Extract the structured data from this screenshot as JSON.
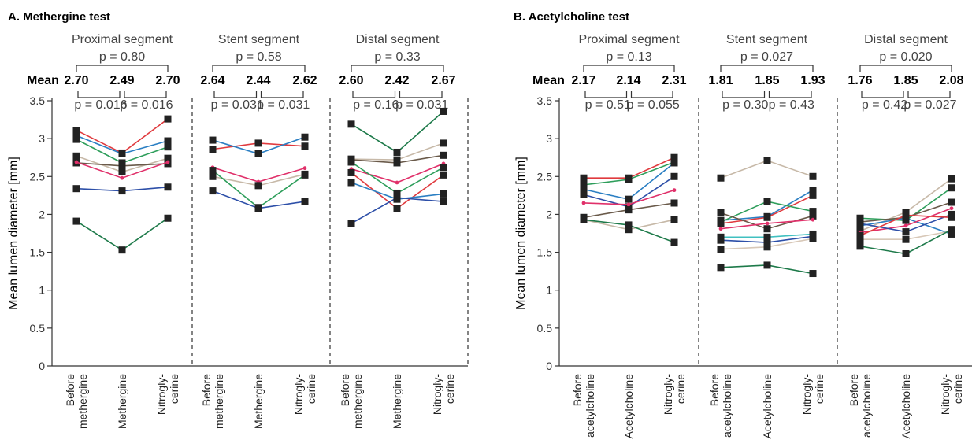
{
  "chart_data": [
    {
      "type": "line",
      "title": "A. Methergine test",
      "ylabel": "Mean lumen diameter [mm]",
      "ylim": [
        0,
        3.5
      ],
      "yticks": [
        "0",
        "0.5",
        "1",
        "1.5",
        "2",
        "2.5",
        "3",
        "3.5"
      ],
      "mean_label": "Mean",
      "segments": [
        {
          "name": "Proximal segment",
          "p_overall": "p = 0.80",
          "means": [
            "2.70",
            "2.49",
            "2.70"
          ],
          "p_pairs": [
            "p = 0.016",
            "p = 0.016"
          ],
          "categories": [
            [
              "Before",
              "methergine"
            ],
            [
              "Methergine"
            ],
            [
              "Nitrogly-",
              "cerine"
            ]
          ],
          "series": [
            {
              "color": "#e03a3e",
              "marker": "square",
              "values": [
                3.11,
                2.81,
                3.26
              ]
            },
            {
              "color": "#2b7fc3",
              "marker": "square",
              "values": [
                3.04,
                2.8,
                2.97
              ]
            },
            {
              "color": "#2e9e5b",
              "marker": "square",
              "values": [
                2.99,
                2.68,
                2.89
              ]
            },
            {
              "color": "#c7b9a8",
              "marker": "square",
              "values": [
                2.77,
                2.56,
                2.74
              ]
            },
            {
              "color": "#6a5a4a",
              "marker": "square",
              "values": [
                2.68,
                2.64,
                2.67
              ]
            },
            {
              "color": "#e0306a",
              "marker": "dot",
              "values": [
                2.69,
                2.48,
                2.69
              ]
            },
            {
              "color": "#2d4fa8",
              "marker": "square",
              "values": [
                2.34,
                2.31,
                2.36
              ]
            },
            {
              "color": "#1e7a4a",
              "marker": "square",
              "values": [
                1.91,
                1.53,
                1.95
              ]
            }
          ]
        },
        {
          "name": "Stent segment",
          "p_overall": "p = 0.58",
          "means": [
            "2.64",
            "2.44",
            "2.62"
          ],
          "p_pairs": [
            "p = 0.031",
            "p = 0.031"
          ],
          "categories": [
            [
              "Before",
              "methergine"
            ],
            [
              "Methergine"
            ],
            [
              "Nitrogly-",
              "cerine"
            ]
          ],
          "series": [
            {
              "color": "#e03a3e",
              "marker": "square",
              "values": [
                2.86,
                2.94,
                2.9
              ]
            },
            {
              "color": "#2b7fc3",
              "marker": "square",
              "values": [
                2.98,
                2.8,
                3.02
              ]
            },
            {
              "color": "#e0306a",
              "marker": "dot",
              "values": [
                2.62,
                2.43,
                2.61
              ]
            },
            {
              "color": "#c7b9a8",
              "marker": "square",
              "values": [
                2.5,
                2.38,
                2.53
              ]
            },
            {
              "color": "#2e9e5b",
              "marker": "square",
              "values": [
                2.58,
                2.09,
                2.52
              ]
            },
            {
              "color": "#2d4fa8",
              "marker": "square",
              "values": [
                2.31,
                2.08,
                2.17
              ]
            }
          ]
        },
        {
          "name": "Distal segment",
          "p_overall": "p = 0.33",
          "means": [
            "2.60",
            "2.42",
            "2.67"
          ],
          "p_pairs": [
            "p = 0.16",
            "p = 0.031"
          ],
          "categories": [
            [
              "Before",
              "methergine"
            ],
            [
              "Methergine"
            ],
            [
              "Nitrogly-",
              "cerine"
            ]
          ],
          "series": [
            {
              "color": "#1e7a4a",
              "marker": "square",
              "values": [
                3.19,
                2.82,
                3.36
              ]
            },
            {
              "color": "#c7b9a8",
              "marker": "square",
              "values": [
                2.73,
                2.72,
                2.94
              ]
            },
            {
              "color": "#6a5a4a",
              "marker": "square",
              "values": [
                2.72,
                2.68,
                2.78
              ]
            },
            {
              "color": "#e0306a",
              "marker": "dot",
              "values": [
                2.6,
                2.42,
                2.67
              ]
            },
            {
              "color": "#2e9e5b",
              "marker": "square",
              "values": [
                2.69,
                2.28,
                2.62
              ]
            },
            {
              "color": "#e03a3e",
              "marker": "square",
              "values": [
                2.55,
                2.08,
                2.52
              ]
            },
            {
              "color": "#2b7fc3",
              "marker": "square",
              "values": [
                2.42,
                2.2,
                2.27
              ]
            },
            {
              "color": "#2d4fa8",
              "marker": "square",
              "values": [
                1.88,
                2.22,
                2.17
              ]
            }
          ]
        }
      ]
    },
    {
      "type": "line",
      "title": "B. Acetylcholine test",
      "ylabel": "Mean lumen diameter [mm]",
      "ylim": [
        0,
        3.5
      ],
      "yticks": [
        "0",
        "0.5",
        "1",
        "1.5",
        "2",
        "2.5",
        "3",
        "3.5"
      ],
      "mean_label": "Mean",
      "segments": [
        {
          "name": "Proximal segment",
          "p_overall": "p = 0.13",
          "means": [
            "2.17",
            "2.14",
            "2.31"
          ],
          "p_pairs": [
            "p = 0.51",
            "p = 0.055"
          ],
          "categories": [
            [
              "Before",
              "acetylcholine"
            ],
            [
              "Acetylcholine"
            ],
            [
              "Nitrogly-",
              "cerine"
            ]
          ],
          "series": [
            {
              "color": "#e03a3e",
              "marker": "square",
              "values": [
                2.48,
                2.48,
                2.75
              ]
            },
            {
              "color": "#2e9e5b",
              "marker": "square",
              "values": [
                2.39,
                2.46,
                2.69
              ]
            },
            {
              "color": "#2b7fc3",
              "marker": "square",
              "values": [
                2.33,
                2.2,
                2.68
              ]
            },
            {
              "color": "#2d4fa8",
              "marker": "square",
              "values": [
                2.26,
                2.1,
                2.5
              ]
            },
            {
              "color": "#e0306a",
              "marker": "dot",
              "values": [
                2.15,
                2.13,
                2.32
              ]
            },
            {
              "color": "#6a5a4a",
              "marker": "square",
              "values": [
                1.96,
                2.06,
                2.15
              ]
            },
            {
              "color": "#c7b9a8",
              "marker": "square",
              "values": [
                1.93,
                1.8,
                1.93
              ]
            },
            {
              "color": "#1e7a4a",
              "marker": "square",
              "values": [
                1.93,
                1.86,
                1.63
              ]
            }
          ]
        },
        {
          "name": "Stent segment",
          "p_overall": "p = 0.027",
          "means": [
            "1.81",
            "1.85",
            "1.93"
          ],
          "p_pairs": [
            "p = 0.30",
            "p = 0.43"
          ],
          "categories": [
            [
              "Before",
              "acetylcholine"
            ],
            [
              "Acetylcholine"
            ],
            [
              "Nitrogly-",
              "cerine"
            ]
          ],
          "series": [
            {
              "color": "#c7b9a8",
              "marker": "square",
              "values": [
                2.48,
                2.71,
                2.5
              ]
            },
            {
              "color": "#2b7fc3",
              "marker": "square",
              "values": [
                1.92,
                1.97,
                2.32
              ]
            },
            {
              "color": "#e03a3e",
              "marker": "square",
              "values": [
                1.88,
                1.96,
                2.25
              ]
            },
            {
              "color": "#2e9e5b",
              "marker": "square",
              "values": [
                1.9,
                2.17,
                2.04
              ]
            },
            {
              "color": "#6a5a4a",
              "marker": "square",
              "values": [
                2.02,
                1.81,
                1.98
              ]
            },
            {
              "color": "#e0306a",
              "marker": "dot",
              "values": [
                1.81,
                1.88,
                1.93
              ]
            },
            {
              "color": "#40c0c0",
              "marker": "square",
              "values": [
                1.7,
                1.7,
                1.74
              ]
            },
            {
              "color": "#2d4fa8",
              "marker": "square",
              "values": [
                1.66,
                1.63,
                1.71
              ]
            },
            {
              "color": "#d8c8b8",
              "marker": "square",
              "values": [
                1.54,
                1.57,
                1.68
              ]
            },
            {
              "color": "#1e7a4a",
              "marker": "square",
              "values": [
                1.3,
                1.33,
                1.22
              ]
            }
          ]
        },
        {
          "name": "Distal segment",
          "p_overall": "p = 0.020",
          "means": [
            "1.76",
            "1.85",
            "2.08"
          ],
          "p_pairs": [
            "p = 0.42",
            "p = 0.027"
          ],
          "categories": [
            [
              "Before",
              "acetylcholine"
            ],
            [
              "Acetylcholine"
            ],
            [
              "Nitrogly-",
              "cerine"
            ]
          ],
          "series": [
            {
              "color": "#c7b9a8",
              "marker": "square",
              "values": [
                1.78,
                2.03,
                2.47
              ]
            },
            {
              "color": "#2e9e5b",
              "marker": "square",
              "values": [
                1.95,
                1.92,
                2.35
              ]
            },
            {
              "color": "#2b7fc3",
              "marker": "square",
              "values": [
                1.85,
                1.95,
                1.74
              ]
            },
            {
              "color": "#6a5a4a",
              "marker": "square",
              "values": [
                1.9,
                1.96,
                2.16
              ]
            },
            {
              "color": "#e0306a",
              "marker": "dot",
              "values": [
                1.76,
                1.85,
                2.08
              ]
            },
            {
              "color": "#2d4fa8",
              "marker": "square",
              "values": [
                1.88,
                1.77,
                2.0
              ]
            },
            {
              "color": "#e03a3e",
              "marker": "square",
              "values": [
                1.72,
                1.99,
                1.96
              ]
            },
            {
              "color": "#d8c8b8",
              "marker": "square",
              "values": [
                1.67,
                1.67,
                1.78
              ]
            },
            {
              "color": "#1e7a4a",
              "marker": "square",
              "values": [
                1.58,
                1.48,
                1.8
              ]
            }
          ]
        }
      ]
    }
  ]
}
